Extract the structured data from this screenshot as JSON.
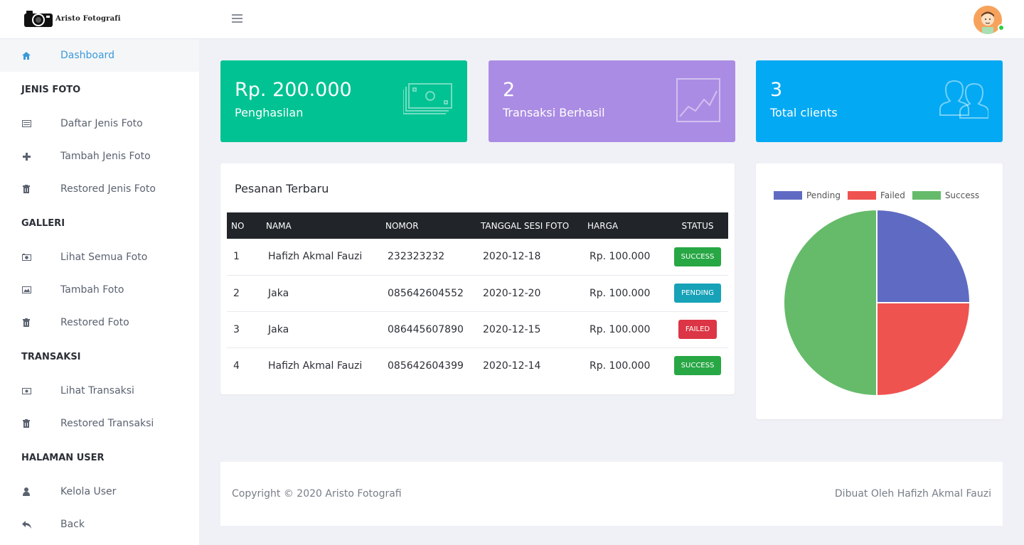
{
  "brand": {
    "name": "Aristo Fotografi"
  },
  "sidebar": {
    "dashboard": "Dashboard",
    "sections": [
      {
        "title": "JENIS FOTO",
        "items": [
          "Daftar Jenis Foto",
          "Tambah Jenis Foto",
          "Restored Jenis Foto"
        ]
      },
      {
        "title": "GALLERI",
        "items": [
          "Lihat Semua Foto",
          "Tambah Foto",
          "Restored Foto"
        ]
      },
      {
        "title": "TRANSAKSI",
        "items": [
          "Lihat Transaksi",
          "Restored Transaksi"
        ]
      },
      {
        "title": "HALAMAN USER",
        "items": [
          "Kelola User",
          "Back"
        ]
      }
    ]
  },
  "stats": [
    {
      "value": "Rp. 200.000",
      "label": "Penghasilan",
      "color": "#00c292",
      "icon": "money-icon"
    },
    {
      "value": "2",
      "label": "Transaksi Berhasil",
      "color": "#ab8ce4",
      "icon": "line-chart-icon"
    },
    {
      "value": "3",
      "label": "Total clients",
      "color": "#03a9f3",
      "icon": "users-icon"
    }
  ],
  "orders": {
    "title": "Pesanan Terbaru",
    "columns": [
      "NO",
      "NAMA",
      "NOMOR",
      "TANGGAL SESI FOTO",
      "HARGA",
      "STATUS"
    ],
    "rows": [
      {
        "no": "1",
        "nama": "Hafizh Akmal Fauzi",
        "nomor": "232323232",
        "tanggal": "2020-12-18",
        "harga": "Rp. 100.000",
        "status": "SUCCESS"
      },
      {
        "no": "2",
        "nama": "Jaka",
        "nomor": "085642604552",
        "tanggal": "2020-12-20",
        "harga": "Rp. 100.000",
        "status": "PENDING"
      },
      {
        "no": "3",
        "nama": "Jaka",
        "nomor": "086445607890",
        "tanggal": "2020-12-15",
        "harga": "Rp. 100.000",
        "status": "FAILED"
      },
      {
        "no": "4",
        "nama": "Hafizh Akmal Fauzi",
        "nomor": "085642604399",
        "tanggal": "2020-12-14",
        "harga": "Rp. 100.000",
        "status": "SUCCESS"
      }
    ]
  },
  "chart_data": {
    "type": "pie",
    "categories": [
      "Pending",
      "Failed",
      "Success"
    ],
    "values": [
      1,
      1,
      2
    ],
    "colors": [
      "#5f6bc2",
      "#ef5350",
      "#66bb6a"
    ],
    "legend": "top"
  },
  "footer": {
    "copyright": "Copyright © 2020 Aristo Fotografi",
    "credit": "Dibuat Oleh Hafizh Akmal Fauzi"
  }
}
